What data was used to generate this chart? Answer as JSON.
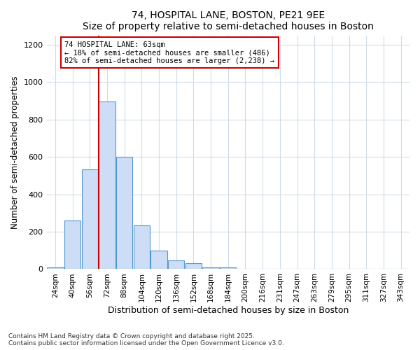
{
  "title1": "74, HOSPITAL LANE, BOSTON, PE21 9EE",
  "title2": "Size of property relative to semi-detached houses in Boston",
  "xlabel": "Distribution of semi-detached houses by size in Boston",
  "ylabel": "Number of semi-detached properties",
  "categories": [
    "24sqm",
    "40sqm",
    "56sqm",
    "72sqm",
    "88sqm",
    "104sqm",
    "120sqm",
    "136sqm",
    "152sqm",
    "168sqm",
    "184sqm",
    "200sqm",
    "216sqm",
    "231sqm",
    "247sqm",
    "263sqm",
    "279sqm",
    "295sqm",
    "311sqm",
    "327sqm",
    "343sqm"
  ],
  "bar_values": [
    10,
    260,
    535,
    895,
    600,
    235,
    100,
    45,
    30,
    10,
    10,
    0,
    0,
    0,
    0,
    0,
    0,
    0,
    0,
    0,
    0
  ],
  "bar_color": "#ccddf5",
  "bar_edge_color": "#5599cc",
  "property_label": "74 HOSPITAL LANE: 63sqm",
  "annotation_line1": "← 18% of semi-detached houses are smaller (486)",
  "annotation_line2": "82% of semi-detached houses are larger (2,238) →",
  "annotation_box_color": "#ffffff",
  "annotation_box_edge": "#cc0000",
  "vline_color": "#cc0000",
  "vline_x": 2.5,
  "ylim": [
    0,
    1250
  ],
  "yticks": [
    0,
    200,
    400,
    600,
    800,
    1000,
    1200
  ],
  "footer1": "Contains HM Land Registry data © Crown copyright and database right 2025.",
  "footer2": "Contains public sector information licensed under the Open Government Licence v3.0.",
  "bg_color": "#ffffff",
  "plot_bg_color": "#ffffff",
  "grid_color": "#d0dce8"
}
